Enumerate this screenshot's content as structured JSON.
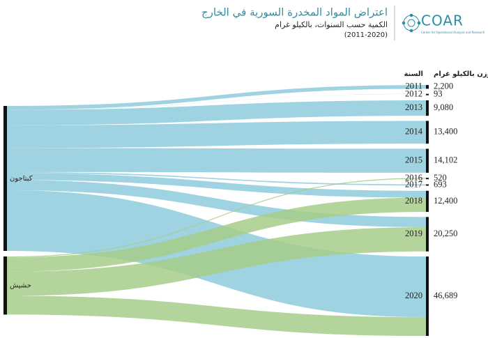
{
  "logo": {
    "name": "COAR",
    "tagline": "Center for Operational Analysis and Research"
  },
  "chart_data": {
    "type": "sankey",
    "title": "اعتراض المواد المخدرة السورية في الخارج",
    "subtitle": "الكمية حسب السنوات، بالكيلو غرام",
    "period": "(2011-2020)",
    "year_header": "السنة",
    "value_header": "الوزن بالكيلو غرام",
    "node_color": "#111111",
    "categories": [
      "2011",
      "2012",
      "2013",
      "2014",
      "2015",
      "2016",
      "2017",
      "2018",
      "2019",
      "2020"
    ],
    "values": [
      2200,
      93,
      9080,
      13400,
      14102,
      520,
      693,
      12400,
      20250,
      46689
    ],
    "value_labels": [
      "2,200",
      "93",
      "9,080",
      "13,400",
      "14,102",
      "520",
      "693",
      "12,400",
      "20,250",
      "46,689"
    ],
    "series": [
      {
        "name": "كبتاجون",
        "color": "#8ecbdc",
        "values": [
          2200,
          93,
          9080,
          13400,
          14102,
          0,
          693,
          4000,
          6000,
          35689
        ]
      },
      {
        "name": "حشيش",
        "color": "#a6cd8a",
        "values": [
          0,
          0,
          0,
          0,
          0,
          520,
          0,
          8400,
          14250,
          11000
        ]
      }
    ]
  }
}
